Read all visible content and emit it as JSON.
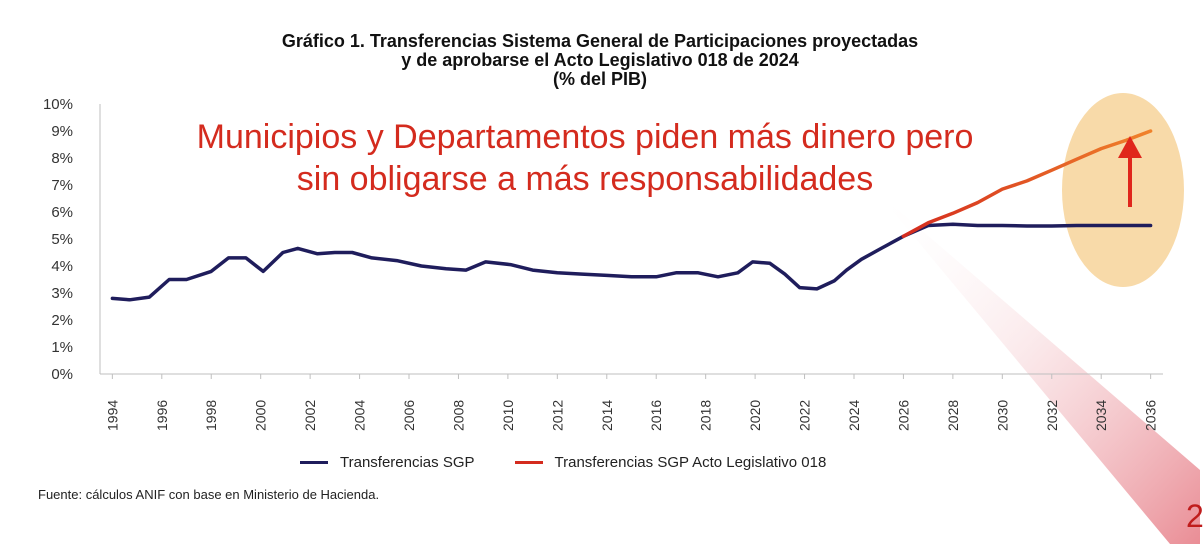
{
  "title_lines": [
    "Gráfico 1. Transferencias Sistema General de Participaciones proyectadas",
    "y de aprobarse el Acto Legislativo 018 de 2024",
    "(% del PIB)"
  ],
  "annotation": {
    "lines": [
      "Municipios y Departamentos piden más dinero pero",
      "sin obligarse a más responsabilidades"
    ],
    "color": "#d42b1e"
  },
  "source": "Fuente: cálculos ANIF con base en Ministerio de Hacienda.",
  "page_number": "2",
  "colors": {
    "sgp": "#1f1d5c",
    "acto_start": "#d42b1e",
    "acto_end": "#f0822b",
    "highlight": "#f7d39a",
    "arrow": "#e0261c"
  },
  "chart_data": {
    "type": "line",
    "title": "Gráfico 1. Transferencias Sistema General de Participaciones proyectadas y de aprobarse el Acto Legislativo 018 de 2024 (% del PIB)",
    "xlabel": "",
    "ylabel": "",
    "xlim": [
      1993.5,
      2036.5
    ],
    "ylim": [
      0,
      10
    ],
    "y_ticks": [
      "0%",
      "1%",
      "2%",
      "3%",
      "4%",
      "5%",
      "6%",
      "7%",
      "8%",
      "9%",
      "10%"
    ],
    "x_ticks": [
      "1994",
      "1996",
      "1998",
      "2000",
      "2002",
      "2004",
      "2006",
      "2008",
      "2010",
      "2012",
      "2014",
      "2016",
      "2018",
      "2020",
      "2022",
      "2024",
      "2026",
      "2028",
      "2030",
      "2032",
      "2034",
      "2036"
    ],
    "grid": false,
    "legend_position": "bottom",
    "series": [
      {
        "name": "Transferencias SGP",
        "color": "#1f1d5c",
        "x": [
          1994,
          1994.7,
          1995.5,
          1996.3,
          1997,
          1998,
          1998.7,
          1999.4,
          2000.1,
          2000.9,
          2001.5,
          2002.3,
          2003,
          2003.7,
          2004.5,
          2005.5,
          2006.5,
          2007.5,
          2008.3,
          2009.1,
          2010.1,
          2011,
          2012,
          2013,
          2014,
          2015,
          2016,
          2016.8,
          2017.7,
          2018.5,
          2019.3,
          2019.9,
          2020.6,
          2021.2,
          2021.8,
          2022.5,
          2023.2,
          2023.7,
          2024.3,
          2025.1,
          2026,
          2027,
          2028,
          2029,
          2030,
          2031,
          2032,
          2033,
          2034,
          2035,
          2036
        ],
        "values": [
          2.8,
          2.75,
          2.85,
          3.5,
          3.5,
          3.8,
          4.3,
          4.3,
          3.8,
          4.5,
          4.65,
          4.45,
          4.5,
          4.5,
          4.3,
          4.2,
          4.0,
          3.9,
          3.85,
          4.15,
          4.05,
          3.85,
          3.75,
          3.7,
          3.65,
          3.6,
          3.6,
          3.75,
          3.75,
          3.6,
          3.75,
          4.15,
          4.1,
          3.7,
          3.2,
          3.15,
          3.45,
          3.85,
          4.25,
          4.65,
          5.1,
          5.5,
          5.55,
          5.5,
          5.5,
          5.48,
          5.48,
          5.5,
          5.5,
          5.5,
          5.5
        ]
      },
      {
        "name": "Transferencias SGP Acto Legislativo 018",
        "color": "#d42b1e",
        "x": [
          2026,
          2027,
          2028,
          2029,
          2030,
          2031,
          2032,
          2033,
          2034,
          2035,
          2036
        ],
        "values": [
          5.1,
          5.6,
          5.95,
          6.35,
          6.85,
          7.15,
          7.55,
          7.95,
          8.35,
          8.65,
          9.0
        ]
      }
    ]
  }
}
